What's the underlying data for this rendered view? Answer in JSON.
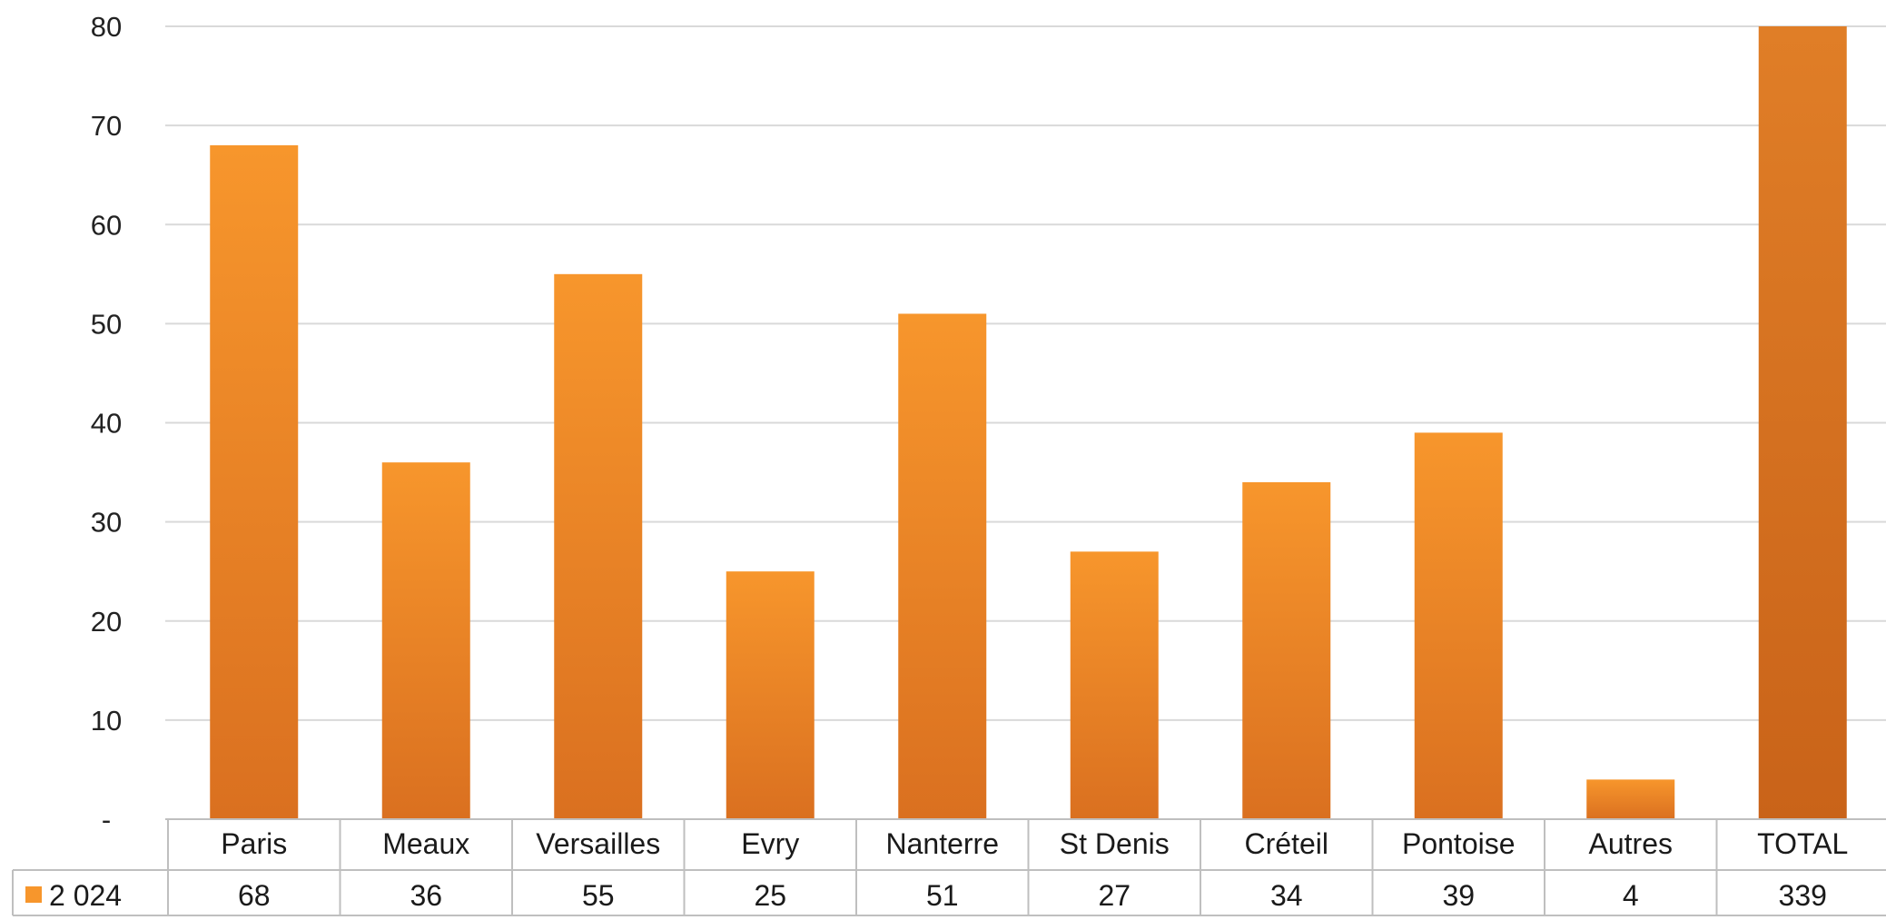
{
  "chart_data": {
    "type": "bar",
    "categories": [
      "Paris",
      "Meaux",
      "Versailles",
      "Evry",
      "Nanterre",
      "St Denis",
      "Créteil",
      "Pontoise",
      "Autres",
      "TOTAL"
    ],
    "series": [
      {
        "name": "2 024",
        "values": [
          68,
          36,
          55,
          25,
          51,
          27,
          34,
          39,
          4,
          339
        ],
        "value_labels": [
          "68",
          "36",
          "55",
          "25",
          "51",
          "27",
          "34",
          "39",
          "4",
          "339"
        ]
      }
    ],
    "ylim": [
      0,
      80
    ],
    "yticks": [
      {
        "value": 0,
        "label": "-"
      },
      {
        "value": 10,
        "label": "10"
      },
      {
        "value": 20,
        "label": "20"
      },
      {
        "value": 30,
        "label": "30"
      },
      {
        "value": 40,
        "label": "40"
      },
      {
        "value": 50,
        "label": "50"
      },
      {
        "value": 60,
        "label": "60"
      },
      {
        "value": 70,
        "label": "70"
      },
      {
        "value": 80,
        "label": "80"
      }
    ],
    "grid": true,
    "legend": "data-table",
    "data_table": true,
    "colors": {
      "bar_light": "#F7962C",
      "bar_dark": "#DA7020",
      "total_light": "#E07E27",
      "total_dark": "#C96319",
      "grid": "#D9D9D9",
      "table_border": "#BFBFBF"
    }
  }
}
